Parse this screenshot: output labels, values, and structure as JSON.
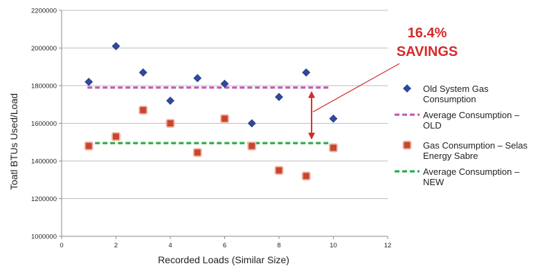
{
  "chart_data": {
    "type": "scatter",
    "xlabel": "Recorded Loads (Similar Size)",
    "ylabel": "Toatl BTUs Used/Load",
    "xlim": [
      0,
      12
    ],
    "ylim": [
      1000000,
      2200000
    ],
    "x_ticks": [
      "0",
      "2",
      "4",
      "6",
      "8",
      "10",
      "12"
    ],
    "y_ticks": [
      "1000000",
      "1200000",
      "1400000",
      "1600000",
      "1800000",
      "2000000",
      "2200000"
    ],
    "grid": "horizontal",
    "legend_position": "right",
    "series": [
      {
        "name": "Old System Gas Consumption",
        "legend_lines": [
          "Old System Gas",
          "Consumption"
        ],
        "marker": "diamond",
        "color": "#2e4a9e",
        "x": [
          1,
          2,
          3,
          4,
          5,
          6,
          7,
          8,
          9,
          10
        ],
        "y": [
          1820000,
          2010000,
          1870000,
          1720000,
          1840000,
          1810000,
          1600000,
          1740000,
          1870000,
          1625000
        ]
      },
      {
        "name": "Average Consumption – OLD",
        "legend_lines": [
          "Average Consumption –",
          "OLD"
        ],
        "type": "dashed-line",
        "color": "#c45bb8",
        "x": [
          1,
          10
        ],
        "y": [
          1790000,
          1790000
        ]
      },
      {
        "name": "Gas Consumption – Selas Energy Sabre",
        "legend_lines": [
          "Gas Consumption – Selas",
          "Energy Sabre"
        ],
        "marker": "square",
        "color": "#c8462e",
        "x": [
          1,
          2,
          3,
          4,
          5,
          6,
          7,
          8,
          9,
          10
        ],
        "y": [
          1480000,
          1530000,
          1670000,
          1600000,
          1445000,
          1625000,
          1480000,
          1350000,
          1320000,
          1470000
        ]
      },
      {
        "name": "Average Consumption – NEW",
        "legend_lines": [
          "Average Consumption –",
          "NEW"
        ],
        "type": "dashed-line",
        "color": "#2eaa4a",
        "x": [
          1,
          10
        ],
        "y": [
          1495000,
          1495000
        ]
      }
    ],
    "annotation": {
      "lines": [
        "16.4%",
        "SAVINGS"
      ],
      "color": "#d42a2a",
      "arrow_x": 9.2,
      "arrow_y": [
        1790000,
        1495000
      ]
    }
  }
}
